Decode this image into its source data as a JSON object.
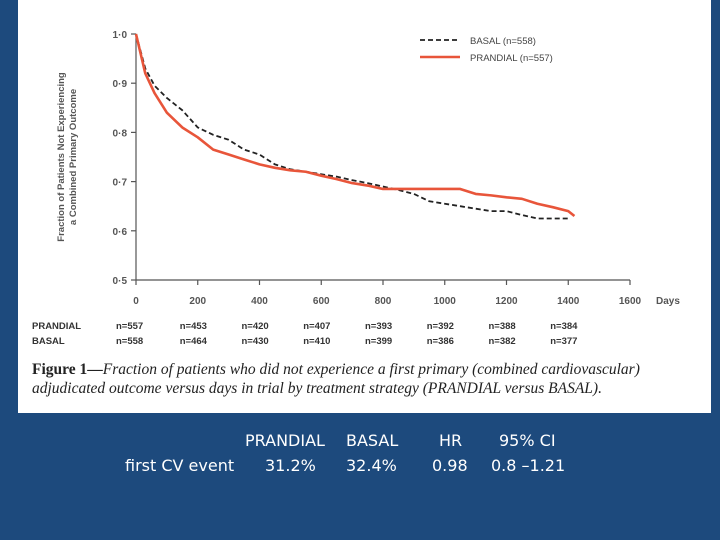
{
  "chart_data": {
    "type": "line",
    "title": "",
    "xlabel": "Days",
    "ylabel": "Fraction of Patients Not Experiencing a Combined Primary Outcome",
    "ylabel_lines": [
      "Fraction of Patients Not Experiencing",
      "a Combined Primary Outcome"
    ],
    "xlim": [
      0,
      1600
    ],
    "ylim": [
      0.5,
      1.0
    ],
    "x_ticks": [
      "0",
      "200",
      "400",
      "600",
      "800",
      "1000",
      "1200",
      "1400",
      "1600"
    ],
    "y_ticks": [
      "0·5",
      "0·6",
      "0·7",
      "0·8",
      "0·9",
      "1·0"
    ],
    "grid": false,
    "legend_position": "top-right",
    "series": [
      {
        "name": "BASAL (n=558)",
        "style": "dashed",
        "color": "#222222",
        "x": [
          0,
          30,
          60,
          100,
          150,
          200,
          250,
          300,
          350,
          400,
          450,
          500,
          550,
          600,
          650,
          700,
          750,
          800,
          850,
          900,
          950,
          1000,
          1050,
          1100,
          1150,
          1200,
          1250,
          1300,
          1350,
          1400
        ],
        "y": [
          1.0,
          0.93,
          0.895,
          0.87,
          0.845,
          0.81,
          0.795,
          0.785,
          0.765,
          0.755,
          0.735,
          0.725,
          0.72,
          0.715,
          0.71,
          0.703,
          0.697,
          0.69,
          0.683,
          0.675,
          0.66,
          0.655,
          0.65,
          0.645,
          0.64,
          0.64,
          0.632,
          0.625,
          0.625,
          0.625
        ]
      },
      {
        "name": "PRANDIAL (n=557)",
        "style": "solid",
        "color": "#e8553a",
        "x": [
          0,
          30,
          60,
          100,
          150,
          200,
          250,
          300,
          350,
          400,
          450,
          500,
          550,
          600,
          650,
          700,
          750,
          800,
          850,
          900,
          950,
          1000,
          1050,
          1100,
          1150,
          1200,
          1250,
          1300,
          1350,
          1400,
          1420
        ],
        "y": [
          1.0,
          0.92,
          0.88,
          0.84,
          0.81,
          0.79,
          0.765,
          0.755,
          0.745,
          0.735,
          0.728,
          0.723,
          0.72,
          0.712,
          0.705,
          0.697,
          0.692,
          0.685,
          0.685,
          0.685,
          0.685,
          0.685,
          0.685,
          0.675,
          0.672,
          0.668,
          0.665,
          0.655,
          0.648,
          0.64,
          0.63
        ]
      }
    ],
    "at_risk": {
      "days": [
        0,
        200,
        400,
        600,
        800,
        1000,
        1200,
        1400
      ],
      "rows": [
        {
          "label": "PRANDIAL",
          "values": [
            "n=557",
            "n=453",
            "n=420",
            "n=407",
            "n=393",
            "n=392",
            "n=388",
            "n=384"
          ]
        },
        {
          "label": "BASAL",
          "values": [
            "n=558",
            "n=464",
            "n=430",
            "n=410",
            "n=399",
            "n=386",
            "n=382",
            "n=377"
          ]
        }
      ]
    }
  },
  "caption": {
    "lead": "Figure 1",
    "dash": "—",
    "text": "Fraction of patients who did not experience a first primary (combined cardiovascular) adjudicated outcome versus days in trial by treatment strategy (PRANDIAL versus BASAL)."
  },
  "summary": {
    "headers": [
      "PRANDIAL",
      "BASAL",
      "HR",
      "95% CI"
    ],
    "row_label": "first CV event",
    "values": [
      "31.2%",
      "32.4%",
      "0.98",
      "0.8 –1.21"
    ]
  }
}
